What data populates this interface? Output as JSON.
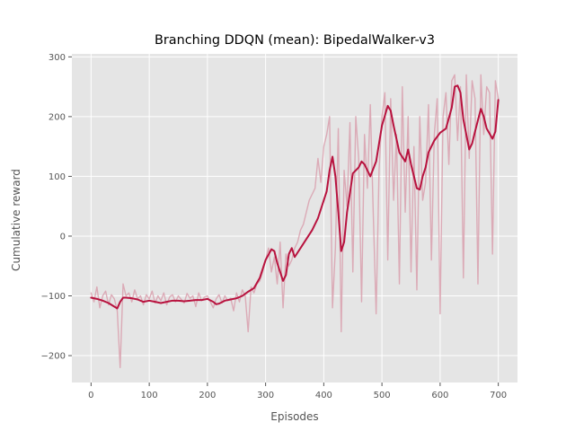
{
  "chart_data": {
    "type": "line",
    "title": "Branching DDQN (mean): BipedalWalker-v3",
    "xlabel": "Episodes",
    "ylabel": "Cumulative reward",
    "xlim": [
      -33,
      733
    ],
    "ylim": [
      -245,
      305
    ],
    "xticks": [
      0,
      100,
      200,
      300,
      400,
      500,
      600,
      700
    ],
    "yticks": [
      -200,
      -100,
      0,
      100,
      200,
      300
    ],
    "grid": true,
    "background": "#e5e5e5",
    "series": [
      {
        "style": "raw",
        "color": "#d9a0ae",
        "x": [
          0,
          5,
          10,
          15,
          20,
          25,
          30,
          35,
          40,
          45,
          50,
          55,
          60,
          65,
          70,
          75,
          80,
          85,
          90,
          95,
          100,
          105,
          110,
          115,
          120,
          125,
          130,
          135,
          140,
          145,
          150,
          155,
          160,
          165,
          170,
          175,
          180,
          185,
          190,
          195,
          200,
          205,
          210,
          215,
          220,
          225,
          230,
          235,
          240,
          245,
          250,
          255,
          260,
          265,
          270,
          275,
          280,
          285,
          290,
          295,
          300,
          305,
          310,
          315,
          320,
          325,
          330,
          335,
          340,
          345,
          350,
          355,
          360,
          365,
          370,
          375,
          380,
          385,
          390,
          395,
          400,
          405,
          410,
          415,
          420,
          425,
          430,
          435,
          440,
          445,
          450,
          455,
          460,
          465,
          470,
          475,
          480,
          485,
          490,
          495,
          500,
          505,
          510,
          515,
          520,
          525,
          530,
          535,
          540,
          545,
          550,
          555,
          560,
          565,
          570,
          575,
          580,
          585,
          590,
          595,
          600,
          605,
          610,
          615,
          620,
          625,
          630,
          635,
          640,
          645,
          650,
          655,
          660,
          665,
          670,
          675,
          680,
          685,
          690,
          695,
          700
        ],
        "y": [
          -95,
          -110,
          -85,
          -120,
          -100,
          -92,
          -115,
          -98,
          -105,
          -125,
          -220,
          -80,
          -100,
          -95,
          -110,
          -90,
          -105,
          -100,
          -115,
          -98,
          -105,
          -92,
          -112,
          -100,
          -108,
          -95,
          -115,
          -102,
          -98,
          -110,
          -100,
          -106,
          -112,
          -96,
          -104,
          -100,
          -118,
          -95,
          -108,
          -102,
          -100,
          -110,
          -120,
          -105,
          -98,
          -112,
          -100,
          -108,
          -104,
          -125,
          -95,
          -110,
          -90,
          -100,
          -160,
          -85,
          -95,
          -80,
          -75,
          -60,
          -40,
          -20,
          -60,
          -35,
          -80,
          -10,
          -120,
          -30,
          -50,
          -40,
          -20,
          -10,
          10,
          20,
          40,
          60,
          70,
          80,
          130,
          90,
          150,
          170,
          200,
          -120,
          -20,
          180,
          -160,
          110,
          50,
          190,
          -60,
          200,
          130,
          -110,
          170,
          80,
          220,
          40,
          -130,
          110,
          200,
          240,
          -40,
          230,
          60,
          170,
          -80,
          250,
          40,
          200,
          -60,
          150,
          -90,
          200,
          60,
          90,
          220,
          -40,
          170,
          230,
          -130,
          200,
          240,
          120,
          260,
          270,
          160,
          250,
          -70,
          270,
          130,
          260,
          230,
          -80,
          270,
          170,
          250,
          240,
          -30,
          260,
          230
        ]
      },
      {
        "style": "smoothed",
        "color": "#b8123e",
        "x": [
          0,
          10,
          20,
          30,
          40,
          45,
          50,
          55,
          60,
          70,
          80,
          90,
          100,
          110,
          120,
          130,
          140,
          150,
          160,
          170,
          180,
          190,
          200,
          210,
          215,
          220,
          230,
          240,
          250,
          260,
          270,
          280,
          290,
          300,
          310,
          315,
          320,
          330,
          335,
          340,
          345,
          350,
          360,
          370,
          380,
          390,
          400,
          405,
          410,
          415,
          420,
          425,
          430,
          435,
          440,
          450,
          460,
          465,
          470,
          480,
          490,
          500,
          510,
          515,
          520,
          530,
          540,
          545,
          550,
          560,
          565,
          570,
          575,
          580,
          590,
          600,
          610,
          620,
          625,
          630,
          635,
          640,
          650,
          655,
          660,
          670,
          675,
          680,
          690,
          695,
          700
        ],
        "y": [
          -103,
          -105,
          -108,
          -112,
          -118,
          -121,
          -110,
          -103,
          -103,
          -104,
          -106,
          -110,
          -108,
          -110,
          -112,
          -110,
          -108,
          -108,
          -109,
          -108,
          -107,
          -107,
          -105,
          -110,
          -114,
          -113,
          -108,
          -106,
          -104,
          -100,
          -93,
          -87,
          -70,
          -40,
          -22,
          -25,
          -45,
          -75,
          -65,
          -30,
          -20,
          -35,
          -20,
          -5,
          10,
          30,
          60,
          75,
          110,
          133,
          100,
          40,
          -25,
          -10,
          40,
          105,
          115,
          125,
          120,
          100,
          125,
          185,
          218,
          210,
          185,
          140,
          125,
          145,
          120,
          80,
          78,
          100,
          115,
          140,
          160,
          173,
          180,
          215,
          250,
          252,
          240,
          195,
          145,
          155,
          175,
          213,
          200,
          180,
          163,
          175,
          228
        ]
      }
    ]
  }
}
